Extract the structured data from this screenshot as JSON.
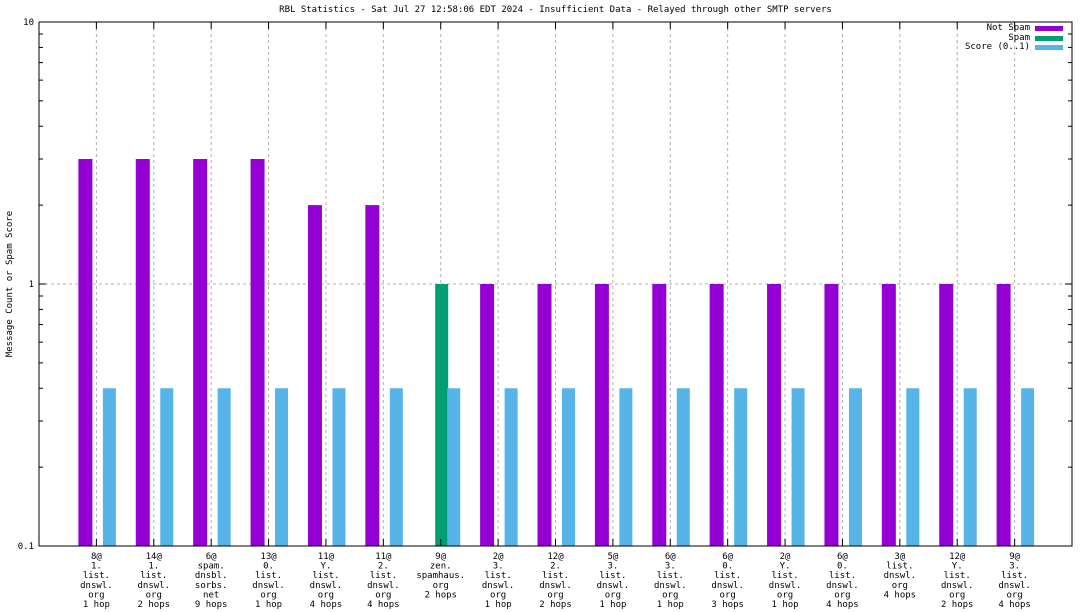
{
  "page": {
    "background": "#ffffff"
  },
  "chart_data": {
    "type": "bar",
    "title": "RBL Statistics - Sat Jul 27 12:58:06 EDT 2024 - Insufficient Data - Relayed through other SMTP servers",
    "ylabel": "Message Count or Spam Score",
    "xlabel": "",
    "y_scale": "log",
    "ylim": [
      0.1,
      10
    ],
    "y_ticks": [
      {
        "label": "10",
        "value": 10
      },
      {
        "label": "1",
        "value": 1
      },
      {
        "label": "0.1",
        "value": 0.1
      }
    ],
    "grid": {
      "vertical_dashed": true,
      "horizontal_dashed_at": 1,
      "color": "#b0b0b0"
    },
    "axis_color": "#000000",
    "legend_position": "top-right",
    "series": [
      {
        "name": "Not Spam",
        "color": "#9400d3",
        "values": [
          3,
          3,
          3,
          3,
          2,
          2,
          0,
          1,
          1,
          1,
          1,
          1,
          1,
          1,
          1,
          1,
          1
        ]
      },
      {
        "name": "Spam",
        "color": "#009e73",
        "values": [
          0,
          0,
          0,
          0,
          0,
          0,
          1,
          0,
          0,
          0,
          0,
          0,
          0,
          0,
          0,
          0,
          0
        ]
      },
      {
        "name": "Score (0..1)",
        "color": "#56b4e9",
        "values": [
          0.4,
          0.4,
          0.4,
          0.4,
          0.4,
          0.4,
          0.4,
          0.4,
          0.4,
          0.4,
          0.4,
          0.4,
          0.4,
          0.4,
          0.4,
          0.4,
          0.4
        ]
      }
    ],
    "categories": [
      [
        "8@",
        "1.",
        "list.",
        "dnswl.",
        "org",
        "1 hop"
      ],
      [
        "14@",
        "1.",
        "list.",
        "dnswl.",
        "org",
        "2 hops"
      ],
      [
        "6@",
        "spam.",
        "dnsbl.",
        "sorbs.",
        "net",
        "9 hops"
      ],
      [
        "13@",
        "0.",
        "list.",
        "dnswl.",
        "org",
        "1 hop"
      ],
      [
        "11@",
        "Y.",
        "list.",
        "dnswl.",
        "org",
        "4 hops"
      ],
      [
        "11@",
        "2.",
        "list.",
        "dnswl.",
        "org",
        "4 hops"
      ],
      [
        "9@",
        "zen.",
        "spamhaus.",
        "org",
        "2 hops"
      ],
      [
        "2@",
        "3.",
        "list.",
        "dnswl.",
        "org",
        "1 hop"
      ],
      [
        "12@",
        "2.",
        "list.",
        "dnswl.",
        "org",
        "2 hops"
      ],
      [
        "5@",
        "3.",
        "list.",
        "dnswl.",
        "org",
        "1 hop"
      ],
      [
        "6@",
        "3.",
        "list.",
        "dnswl.",
        "org",
        "1 hop"
      ],
      [
        "6@",
        "0.",
        "list.",
        "dnswl.",
        "org",
        "3 hops"
      ],
      [
        "2@",
        "Y.",
        "list.",
        "dnswl.",
        "org",
        "1 hop"
      ],
      [
        "6@",
        "0.",
        "list.",
        "dnswl.",
        "org",
        "4 hops"
      ],
      [
        "3@",
        "list.",
        "dnswl.",
        "org",
        "4 hops"
      ],
      [
        "12@",
        "Y.",
        "list.",
        "dnswl.",
        "org",
        "2 hops"
      ],
      [
        "9@",
        "3.",
        "list.",
        "dnswl.",
        "org",
        "4 hops"
      ]
    ]
  }
}
